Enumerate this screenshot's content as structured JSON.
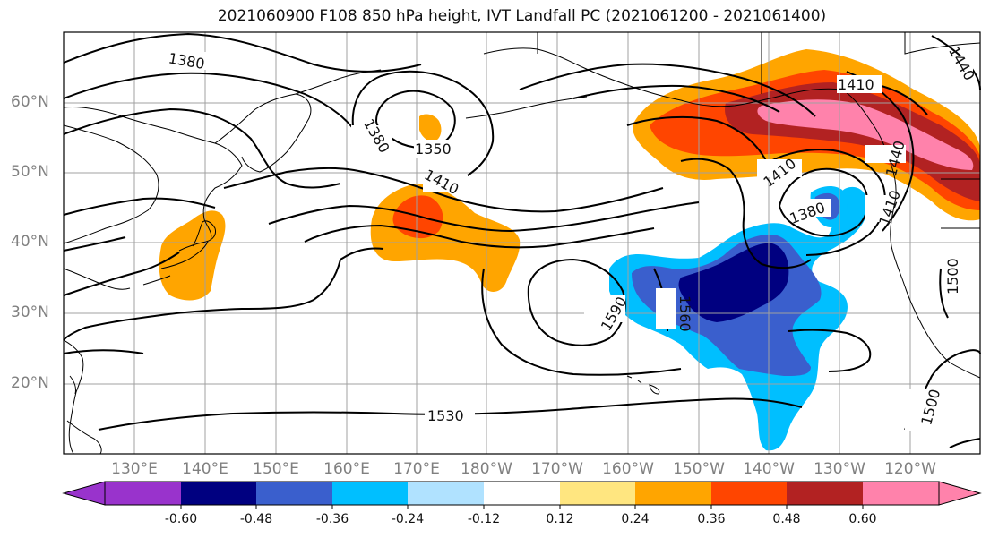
{
  "title": "2021060900 F108 850 hPa height, IVT Landfall PC (2021061200 - 2021061400)",
  "lat_labels": [
    "60°N",
    "50°N",
    "40°N",
    "30°N",
    "20°N"
  ],
  "lon_labels": [
    "130°E",
    "140°E",
    "150°E",
    "160°E",
    "170°E",
    "180°W",
    "170°W",
    "160°W",
    "150°W",
    "140°W",
    "130°W",
    "120°W"
  ],
  "contour_labels": [
    "1380",
    "1350",
    "1380",
    "1410",
    "1410",
    "1380",
    "1410",
    "1440",
    "1440",
    "1410",
    "1590",
    "1560",
    "1500",
    "1530",
    "1500"
  ],
  "colorbar": {
    "tick_labels": [
      "-0.60",
      "-0.48",
      "-0.36",
      "-0.24",
      "-0.12",
      "0.12",
      "0.24",
      "0.36",
      "0.48",
      "0.60"
    ],
    "colors": [
      "#9933cc",
      "#000080",
      "#3a5fcd",
      "#00bfff",
      "#b0e2ff",
      "#ffffff",
      "#ffe680",
      "#ffa500",
      "#ff4500",
      "#b22222",
      "#ff82ab"
    ]
  },
  "colors": {
    "land_outline": "#000000",
    "grid": "#a0a0a0",
    "contour": "#000000"
  }
}
